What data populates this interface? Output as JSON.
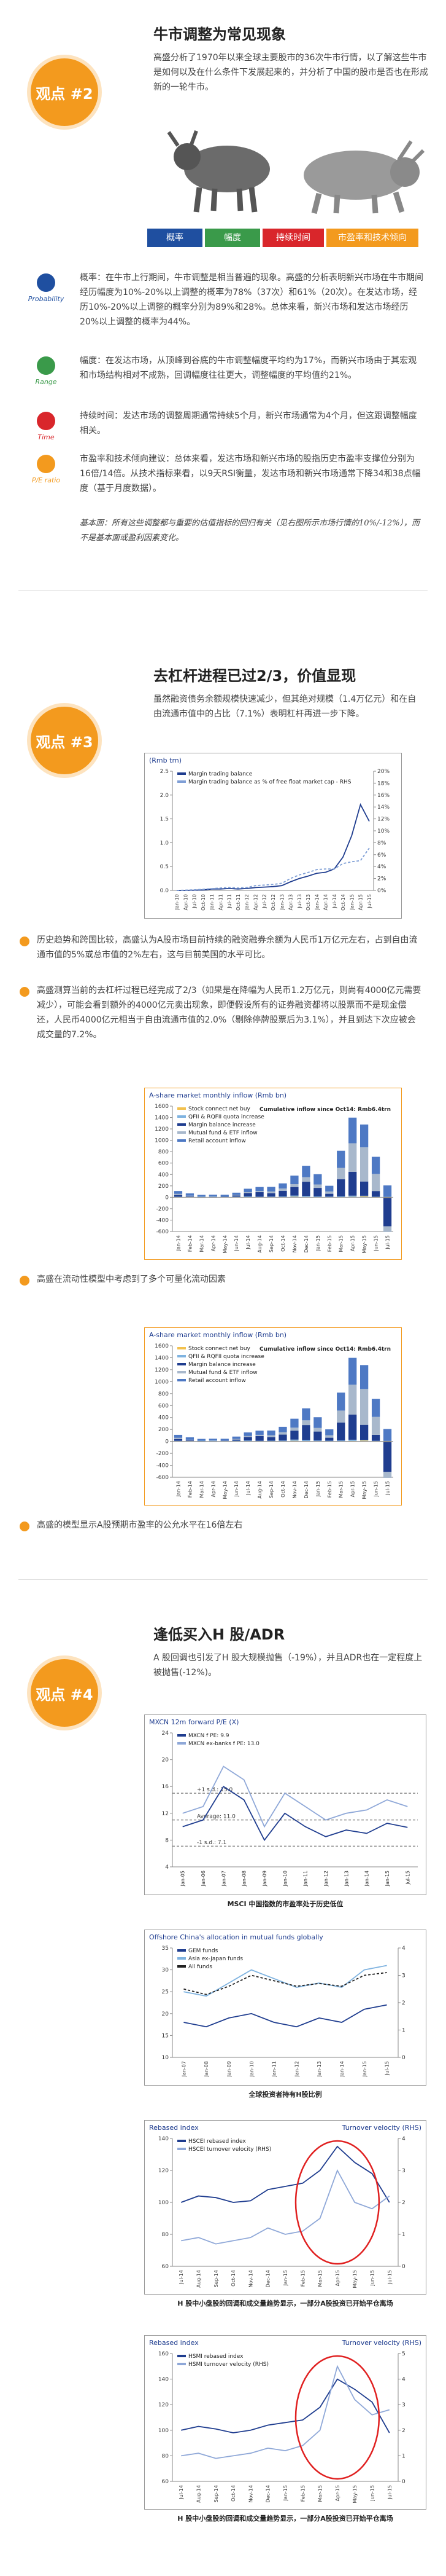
{
  "section1": {
    "badge": "观点 #2",
    "title": "牛市调整为常见现象",
    "intro": "高盛分析了1970年以来全球主要股市的36次牛市行情，以了解这些牛市是如何以及在什么条件下发展起来的，并分析了中国的股市是否也在形成新的一轮牛市。",
    "tabs": [
      "概率",
      "幅度",
      "持续时间",
      "市盈率和技术倾向"
    ],
    "points": [
      {
        "label": "Probability",
        "text": "概率：在牛市上行期间，牛市调整是相当普遍的现象。高盛的分析表明新兴市场在牛市期间经历幅度为10%-20%以上调整的概率为78%（37次）和61%（20次）。在发达市场，经历10%-20%以上调整的概率分别为89%和28%。总体来看，新兴市场和发达市场经历20%以上调整的概率为44%。"
      },
      {
        "label": "Range",
        "text": "幅度：在发达市场，从顶峰到谷底的牛市调整幅度平均约为17%，而新兴市场由于其宏观和市场结构相对不成熟，回调幅度往往更大，调整幅度的平均值约21%。"
      },
      {
        "label": "Time",
        "text": "持续时间：发达市场的调整周期通常持续5个月，新兴市场通常为4个月，但这跟调整幅度相关。"
      },
      {
        "label": "P/E ratio",
        "text": "市盈率和技术倾向建议：总体来看，发达市场和新兴市场的股指历史市盈率支撑位分别为16倍/14倍。从技术指标来看，以9天RSI衡量，发达市场和新兴市场通常下降34和38点幅度（基于月度数据）。"
      }
    ],
    "note": "基本面：所有这些调整都与重要的估值指标的回归有关（见右图所示市场行情的10%/-12%），而不是基本面或盈利因素变化。"
  },
  "section2": {
    "badge": "观点 #3",
    "title": "去杠杆进程已过2/3，价值显现",
    "intro": "虽然融资债务余额规模快速减少，但其绝对规模（1.4万亿元）和在自由流通市值中的占比（7.1%）表明杠杆再进一步下降。",
    "points": [
      "历史趋势和跨国比较，高盛认为A股市场目前持续的融资融券余额为人民币1万亿元左右，占到自由流通市值的5%或总市值的2%左右，这与目前美国的水平可比。",
      "高盛测算当前的去杠杆过程已经完成了2/3（如果是在降幅为人民币1.2万亿元，则尚有4000亿元需要减少），可能会看到额外的4000亿元卖出现象，即便假设所有的证券融资都将以股票而不是现金偿还，人民币4000亿元相当于自由流通市值的2.0%（剔除停牌股票后为3.1%），并且到达下次应被会成交量的7.2%。",
      "高盛在流动性模型中考虑到了多个可量化流动因素",
      "高盛的模型显示A股预期市盈率的公允水平在16倍左右"
    ]
  },
  "section3": {
    "badge": "观点 #4",
    "title": "逢低买入H 股/ADR",
    "intro": "A 股回调也引发了H 股大规模抛售（-19%），并且ADR也在一定程度上被抛售(-12%)。"
  },
  "chart_data": [
    {
      "type": "line",
      "title": "(Rmb trn)",
      "categories": [
        "Jan-10",
        "Apr-10",
        "Jul-10",
        "Oct-10",
        "Jan-11",
        "Apr-11",
        "Jul-11",
        "Oct-11",
        "Jan-12",
        "Apr-12",
        "Jul-12",
        "Oct-12",
        "Jan-13",
        "Apr-13",
        "Jul-13",
        "Oct-13",
        "Jan-14",
        "Apr-14",
        "Jul-14",
        "Oct-14",
        "Jan-15",
        "Apr-15",
        "Jul-15"
      ],
      "series": [
        {
          "name": "Margin trading balance",
          "color": "#1f3d8f",
          "values": [
            0,
            0.001,
            0.005,
            0.01,
            0.03,
            0.03,
            0.04,
            0.03,
            0.04,
            0.06,
            0.07,
            0.08,
            0.1,
            0.18,
            0.25,
            0.3,
            0.36,
            0.38,
            0.45,
            0.7,
            1.15,
            1.8,
            1.45
          ]
        },
        {
          "name": "Margin trading balance as % of free float market cap - RHS",
          "color": "#7f9fd6",
          "axis": "y2",
          "dashed": true,
          "values": [
            0,
            0.05,
            0.1,
            0.2,
            0.3,
            0.4,
            0.5,
            0.4,
            0.5,
            0.8,
            0.9,
            1.0,
            1.2,
            2.0,
            2.6,
            3.0,
            3.5,
            3.6,
            3.6,
            4.5,
            4.8,
            5.0,
            7.1
          ]
        }
      ],
      "ylim": [
        0,
        2.5
      ],
      "yticks": [
        {
          "value": 0,
          "label": "0.0"
        },
        0.5,
        {
          "value": 1,
          "label": "1.0"
        },
        1.5,
        {
          "value": 2,
          "label": "2.0"
        },
        2.5
      ],
      "y2lim": [
        0,
        20
      ],
      "y2ticks": [
        {
          "value": 0,
          "label": "0%"
        },
        {
          "value": 2,
          "label": "2%"
        },
        {
          "value": 4,
          "label": "4%"
        },
        {
          "value": 6,
          "label": "6%"
        },
        {
          "value": 8,
          "label": "8%"
        },
        {
          "value": 10,
          "label": "10%"
        },
        {
          "value": 12,
          "label": "12%"
        },
        {
          "value": 14,
          "label": "14%"
        },
        {
          "value": 16,
          "label": "16%"
        },
        {
          "value": 18,
          "label": "18%"
        },
        {
          "value": 20,
          "label": "20%"
        }
      ],
      "grid": false
    },
    {
      "type": "bar",
      "title": "A-share market monthly inflow (Rmb bn)",
      "annotation": "Cumulative inflow since Oct14: Rmb6.4trn",
      "categories": [
        "Jan-14",
        "Feb-14",
        "Mar-14",
        "Apr-14",
        "May-14",
        "Jun-14",
        "Jul-14",
        "Aug-14",
        "Sep-14",
        "Oct-14",
        "Nov-14",
        "Dec-14",
        "Jan-15",
        "Feb-15",
        "Mar-15",
        "Apr-15",
        "May-15",
        "Jun-15",
        "Jul-15"
      ],
      "series": [
        {
          "name": "Stock connect net buy",
          "color": "#f2c14e",
          "values": [
            0,
            0,
            0,
            0,
            0,
            0,
            0,
            0,
            0,
            0,
            10,
            5,
            3,
            2,
            1,
            8,
            15,
            -5,
            -10
          ]
        },
        {
          "name": "QFII & RQFII quota increase",
          "color": "#7fb3e0",
          "values": [
            10,
            8,
            12,
            10,
            9,
            11,
            15,
            10,
            12,
            14,
            20,
            18,
            12,
            10,
            15,
            20,
            12,
            10,
            8
          ]
        },
        {
          "name": "Margin balance increase",
          "color": "#1f3d8f",
          "values": [
            30,
            10,
            0,
            -5,
            5,
            20,
            60,
            80,
            60,
            100,
            150,
            250,
            150,
            50,
            300,
            420,
            250,
            100,
            -500
          ]
        },
        {
          "name": "Mutual fund & ETF inflow",
          "color": "#a8b8cc",
          "values": [
            20,
            10,
            -10,
            5,
            0,
            10,
            15,
            20,
            30,
            40,
            50,
            80,
            60,
            40,
            200,
            500,
            600,
            300,
            -100
          ]
        },
        {
          "name": "Retail account inflow",
          "color": "#4e79c4",
          "values": [
            50,
            40,
            30,
            30,
            30,
            40,
            60,
            70,
            80,
            90,
            150,
            200,
            180,
            100,
            300,
            450,
            400,
            300,
            200
          ]
        }
      ],
      "ylim": [
        -600,
        1600
      ],
      "yticks": [
        -600,
        -400,
        -200,
        0,
        200,
        400,
        600,
        800,
        1000,
        1200,
        1400,
        1600
      ],
      "grid": false
    },
    {
      "type": "bar",
      "title": "A-share market monthly inflow (Rmb bn)",
      "annotation": "Cumulative inflow since Oct14: Rmb6.4trn",
      "categories": [
        "Jan-14",
        "Feb-14",
        "Mar-14",
        "Apr-14",
        "May-14",
        "Jun-14",
        "Jul-14",
        "Aug-14",
        "Sep-14",
        "Oct-14",
        "Nov-14",
        "Dec-14",
        "Jan-15",
        "Feb-15",
        "Mar-15",
        "Apr-15",
        "May-15",
        "Jun-15",
        "Jul-15"
      ],
      "series": [
        {
          "name": "Stock connect net buy",
          "color": "#f2c14e",
          "values": [
            0,
            0,
            0,
            0,
            0,
            0,
            0,
            0,
            0,
            0,
            10,
            5,
            3,
            2,
            1,
            8,
            15,
            -5,
            -10
          ]
        },
        {
          "name": "QFII & RQFII quota increase",
          "color": "#7fb3e0",
          "values": [
            10,
            8,
            12,
            10,
            9,
            11,
            15,
            10,
            12,
            14,
            20,
            18,
            12,
            10,
            15,
            20,
            12,
            10,
            8
          ]
        },
        {
          "name": "Margin balance increase",
          "color": "#1f3d8f",
          "values": [
            30,
            10,
            0,
            -5,
            5,
            20,
            60,
            80,
            60,
            100,
            150,
            250,
            150,
            50,
            300,
            420,
            250,
            100,
            -500
          ]
        },
        {
          "name": "Mutual fund & ETF inflow",
          "color": "#a8b8cc",
          "values": [
            20,
            10,
            -10,
            5,
            0,
            10,
            15,
            20,
            30,
            40,
            50,
            80,
            60,
            40,
            200,
            500,
            600,
            300,
            -100
          ]
        },
        {
          "name": "Retail account inflow",
          "color": "#4e79c4",
          "values": [
            50,
            40,
            30,
            30,
            30,
            40,
            60,
            70,
            80,
            90,
            150,
            200,
            180,
            100,
            300,
            450,
            400,
            300,
            200
          ]
        }
      ],
      "ylim": [
        -600,
        1600
      ],
      "yticks": [
        -600,
        -400,
        -200,
        0,
        200,
        400,
        600,
        800,
        1000,
        1200,
        1400,
        1600
      ],
      "grid": false
    },
    {
      "type": "line",
      "title": "MXCN 12m forward P/E (X)",
      "caption": "MSCI 中国指数的市盈率处于历史低位",
      "categories": [
        "Jan-05",
        "Jan-06",
        "Jan-07",
        "Jan-08",
        "Jan-09",
        "Jan-10",
        "Jan-11",
        "Jan-12",
        "Jan-13",
        "Jan-14",
        "Jan-15",
        "Jul-15"
      ],
      "series": [
        {
          "name": "MXCN f PE: 9.9",
          "color": "#1f3d8f",
          "values": [
            10,
            11,
            16,
            14,
            8,
            12,
            10,
            8.5,
            9.5,
            9,
            10.5,
            9.9
          ]
        },
        {
          "name": "MXCN ex-banks f PE: 13.0",
          "color": "#8fa8d8",
          "values": [
            12,
            13,
            19,
            17,
            10,
            15,
            13,
            11,
            12,
            12.5,
            14,
            13.0
          ]
        }
      ],
      "reference_lines": [
        {
          "label": "+1 s.d.: 15.0",
          "value": 15.0
        },
        {
          "label": "Average: 11.0",
          "value": 11.0
        },
        {
          "label": "-1 s.d.: 7.1",
          "value": 7.1
        }
      ],
      "ylim": [
        4,
        24
      ],
      "yticks": [
        4,
        8,
        12,
        16,
        20,
        24
      ],
      "grid": false
    },
    {
      "type": "line",
      "title": "Offshore China's allocation in mutual funds globally",
      "caption": "全球投资者持有H股比例",
      "categories": [
        "Jan-07",
        "Jan-08",
        "Jan-09",
        "Jan-10",
        "Jan-11",
        "Jan-12",
        "Jan-13",
        "Jan-14",
        "Jan-15",
        "Jul-15"
      ],
      "series": [
        {
          "name": "GEM funds",
          "color": "#1f3d8f",
          "values": [
            18,
            17,
            19,
            20,
            18,
            17,
            19,
            18,
            21,
            22
          ]
        },
        {
          "name": "Asia ex-Japan funds",
          "color": "#7fb3e0",
          "values": [
            25,
            24,
            27,
            30,
            28,
            26,
            27,
            26,
            30,
            31
          ]
        },
        {
          "name": "All funds",
          "color": "#222222",
          "axis": "y2",
          "dashed": true,
          "values": [
            2.5,
            2.3,
            2.6,
            3,
            2.8,
            2.6,
            2.7,
            2.6,
            3,
            3.1
          ]
        }
      ],
      "ylim": [
        10,
        35
      ],
      "yticks": [
        10,
        15,
        20,
        25,
        30,
        35
      ],
      "y2lim": [
        0,
        4
      ],
      "y2ticks": [
        0,
        1,
        2,
        3,
        4
      ],
      "grid": false
    },
    {
      "type": "line",
      "title": "Rebased index",
      "y2label": "Turnover velocity (RHS)",
      "caption": "H 股中小盘股的回调和成交量趋势显示，一部分A股投资已开始平仓离场",
      "categories": [
        "Jul-14",
        "Aug-14",
        "Sep-14",
        "Oct-14",
        "Nov-14",
        "Dec-14",
        "Jan-15",
        "Feb-15",
        "Mar-15",
        "Apr-15",
        "May-15",
        "Jun-15",
        "Jul-15"
      ],
      "series": [
        {
          "name": "HSCEI rebased index",
          "color": "#1f3d8f",
          "values": [
            100,
            104,
            103,
            100,
            101,
            108,
            110,
            112,
            120,
            135,
            125,
            118,
            100
          ]
        },
        {
          "name": "HSCEI turnover velocity (RHS)",
          "color": "#8fa8d8",
          "axis": "y2",
          "values": [
            0.8,
            0.9,
            0.7,
            0.8,
            0.9,
            1.2,
            1.0,
            1.1,
            1.5,
            3.0,
            2.0,
            1.8,
            2.2
          ]
        }
      ],
      "ylim": [
        60,
        140
      ],
      "yticks": [
        60,
        80,
        100,
        120,
        140
      ],
      "y2lim": [
        0,
        4
      ],
      "y2ticks": [
        0,
        1,
        2,
        3,
        4
      ],
      "grid": false
    },
    {
      "type": "line",
      "title": "Rebased index",
      "y2label": "Turnover velocity (RHS)",
      "caption": "H 股中小盘股的回调和成交量趋势显示，一部分A股投资已开始平仓离场",
      "categories": [
        "Jul-14",
        "Aug-14",
        "Sep-14",
        "Oct-14",
        "Nov-14",
        "Dec-14",
        "Jan-15",
        "Feb-15",
        "Mar-15",
        "Apr-15",
        "May-15",
        "Jun-15",
        "Jul-15"
      ],
      "series": [
        {
          "name": "HSMI rebased index",
          "color": "#1f3d8f",
          "values": [
            100,
            103,
            101,
            98,
            100,
            104,
            106,
            108,
            118,
            140,
            132,
            122,
            98
          ]
        },
        {
          "name": "HSMI turnover velocity (RHS)",
          "color": "#8fa8d8",
          "axis": "y2",
          "values": [
            1.0,
            1.1,
            0.9,
            1.0,
            1.1,
            1.3,
            1.2,
            1.4,
            2.0,
            4.5,
            3.2,
            2.6,
            2.8
          ]
        }
      ],
      "ylim": [
        60,
        160
      ],
      "yticks": [
        60,
        80,
        100,
        120,
        140,
        160
      ],
      "y2lim": [
        0,
        5
      ],
      "y2ticks": [
        0,
        1,
        2,
        3,
        4,
        5
      ],
      "grid": false
    }
  ]
}
